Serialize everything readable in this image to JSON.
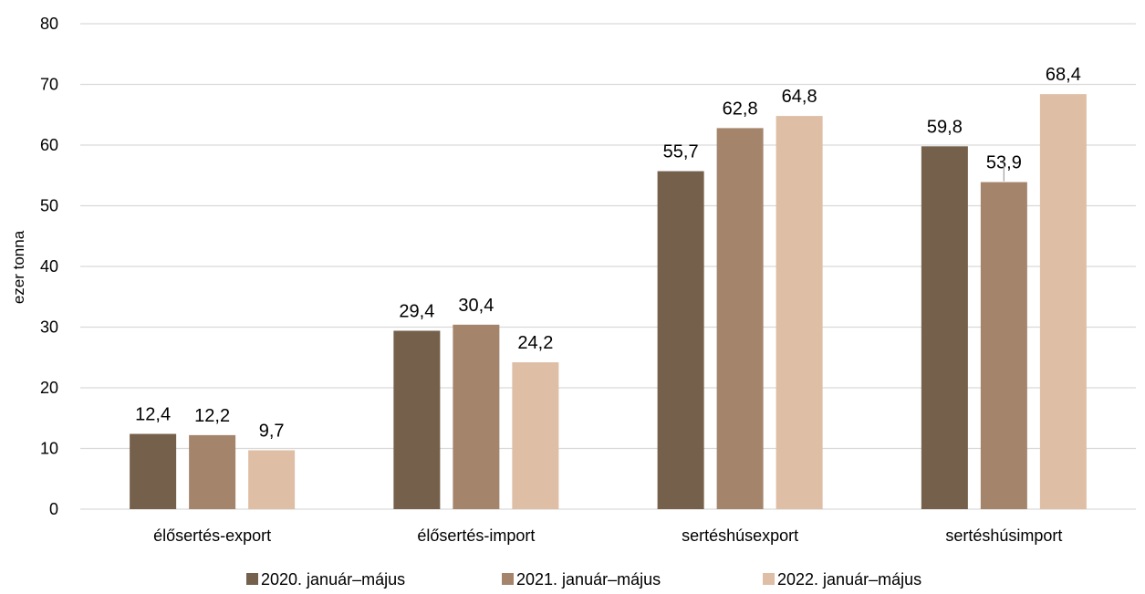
{
  "chart_data": {
    "type": "bar",
    "title": "",
    "xlabel": "",
    "ylabel": "ezer tonna",
    "ylim": [
      0,
      80
    ],
    "yticks": [
      0,
      10,
      20,
      30,
      40,
      50,
      60,
      70,
      80
    ],
    "grid": true,
    "legend_position": "bottom",
    "categories": [
      "élősertés-export",
      "élősertés-import",
      "sertéshúsexport",
      "sertéshúsimport"
    ],
    "series": [
      {
        "name": "2020. január–május",
        "color": "#75604c",
        "values": [
          12.4,
          29.4,
          55.7,
          59.8
        ],
        "labels": [
          "12,4",
          "29,4",
          "55,7",
          "59,8"
        ]
      },
      {
        "name": "2021.  január–május",
        "color": "#a4856c",
        "values": [
          12.2,
          30.4,
          62.8,
          53.9
        ],
        "labels": [
          "12,2",
          "30,4",
          "62,8",
          "53,9"
        ]
      },
      {
        "name": "2022.  január–május",
        "color": "#dfbea6",
        "values": [
          9.7,
          24.2,
          64.8,
          68.4
        ],
        "labels": [
          "9,7",
          "24,2",
          "64,8",
          "68,4"
        ]
      }
    ]
  }
}
